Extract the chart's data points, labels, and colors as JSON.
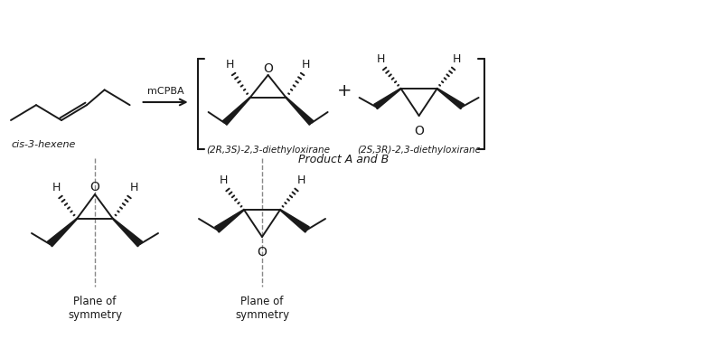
{
  "bg_color": "#ffffff",
  "fig_width": 8.0,
  "fig_height": 3.75,
  "label_cis": "cis-3-hexene",
  "label_reagent": "mCPBA",
  "label_product_A": "(2R,3S)-2,3-diethyloxirane",
  "label_product_B": "(2S,3R)-2,3-diethyloxirane",
  "label_product_AB": "Product A and B",
  "label_plane1": "Plane of\nsymmetry",
  "label_plane2": "Plane of\nsymmetry",
  "label_plus": "+",
  "line_color": "#1a1a1a",
  "text_color": "#1a1a1a",
  "dashed_color": "#888888",
  "xlim": [
    0,
    8
  ],
  "ylim": [
    0,
    3.75
  ]
}
